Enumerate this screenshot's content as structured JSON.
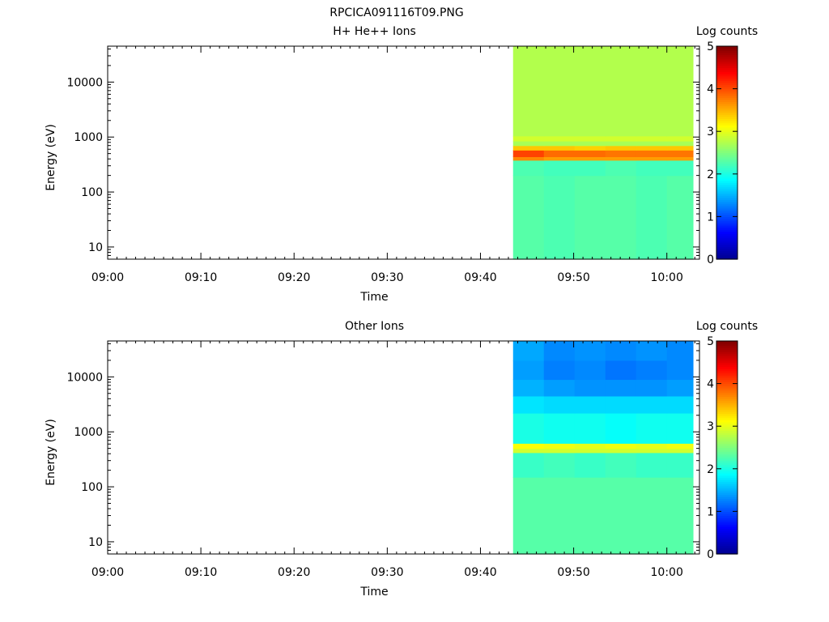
{
  "figure_title": "RPCICA091116T09.PNG",
  "colormap": [
    "#00008f",
    "#0000ff",
    "#007fff",
    "#00ffff",
    "#7fff7f",
    "#ffff00",
    "#ff7f00",
    "#ff0000",
    "#7f0000"
  ],
  "chart_data": [
    {
      "type": "heatmap",
      "title": "H+ He++ Ions",
      "xlabel": "Time",
      "ylabel": "Energy (eV)",
      "x_tick_labels": [
        "09:00",
        "09:10",
        "09:20",
        "09:30",
        "09:40",
        "09:50",
        "10:00"
      ],
      "x_tick_values_min": [
        0,
        10,
        20,
        30,
        40,
        50,
        60
      ],
      "xlim_min": [
        0,
        63.5
      ],
      "y_scale": "log",
      "ylim": [
        6,
        45000
      ],
      "y_tick_labels": [
        "10",
        "100",
        "1000",
        "10000"
      ],
      "y_tick_values": [
        10,
        100,
        1000,
        10000
      ],
      "colorbar_label": "Log counts",
      "colorbar_ticks": [
        "0",
        "1",
        "2",
        "3",
        "4",
        "5"
      ],
      "colorbar_range": [
        0,
        5
      ],
      "data_start_min": 43.5,
      "data_end_min": 62.8,
      "time_bins_min": [
        43.5,
        46.8,
        50.1,
        53.4,
        56.7,
        60.0,
        62.8
      ],
      "energy_bands": [
        {
          "e_low": 6,
          "e_high": 45000,
          "log_counts": [
            2.35,
            2.35,
            2.35,
            2.35,
            2.35,
            2.35
          ]
        }
      ],
      "features": [
        {
          "e_low": 6,
          "e_high": 200,
          "log_counts": [
            2.3,
            2.25,
            2.3,
            2.3,
            2.25,
            2.3
          ]
        },
        {
          "e_low": 200,
          "e_high": 380,
          "log_counts": [
            2.25,
            2.2,
            2.2,
            2.25,
            2.2,
            2.2
          ]
        },
        {
          "e_low": 380,
          "e_high": 440,
          "log_counts": [
            3.7,
            3.6,
            3.6,
            3.6,
            3.6,
            3.6
          ]
        },
        {
          "e_low": 440,
          "e_high": 580,
          "log_counts": [
            4.05,
            3.85,
            3.85,
            3.8,
            3.8,
            3.8
          ]
        },
        {
          "e_low": 580,
          "e_high": 700,
          "log_counts": [
            3.4,
            3.4,
            3.35,
            3.4,
            3.4,
            3.4
          ]
        },
        {
          "e_low": 700,
          "e_high": 850,
          "log_counts": [
            2.7,
            2.7,
            2.7,
            2.7,
            2.7,
            2.7
          ]
        },
        {
          "e_low": 850,
          "e_high": 1050,
          "log_counts": [
            2.9,
            2.9,
            2.9,
            2.9,
            2.9,
            2.9
          ]
        },
        {
          "e_low": 1050,
          "e_high": 45000,
          "log_counts": [
            2.75,
            2.75,
            2.75,
            2.75,
            2.75,
            2.75
          ]
        }
      ]
    },
    {
      "type": "heatmap",
      "title": "Other Ions",
      "xlabel": "Time",
      "ylabel": "Energy (eV)",
      "x_tick_labels": [
        "09:00",
        "09:10",
        "09:20",
        "09:30",
        "09:40",
        "09:50",
        "10:00"
      ],
      "x_tick_values_min": [
        0,
        10,
        20,
        30,
        40,
        50,
        60
      ],
      "xlim_min": [
        0,
        63.5
      ],
      "y_scale": "log",
      "ylim": [
        6,
        45000
      ],
      "y_tick_labels": [
        "10",
        "100",
        "1000",
        "10000"
      ],
      "y_tick_values": [
        10,
        100,
        1000,
        10000
      ],
      "colorbar_label": "Log counts",
      "colorbar_ticks": [
        "0",
        "1",
        "2",
        "3",
        "4",
        "5"
      ],
      "colorbar_range": [
        0,
        5
      ],
      "data_start_min": 43.5,
      "data_end_min": 62.8,
      "time_bins_min": [
        43.5,
        46.8,
        50.1,
        53.4,
        56.7,
        60.0,
        62.8
      ],
      "energy_bands": [
        {
          "e_low": 6,
          "e_high": 45000,
          "log_counts": [
            2.3,
            2.3,
            2.3,
            2.3,
            2.3,
            2.3
          ]
        }
      ],
      "features": [
        {
          "e_low": 6,
          "e_high": 150,
          "log_counts": [
            2.3,
            2.3,
            2.3,
            2.3,
            2.3,
            2.3
          ]
        },
        {
          "e_low": 150,
          "e_high": 420,
          "log_counts": [
            2.15,
            2.2,
            2.15,
            2.2,
            2.15,
            2.15
          ]
        },
        {
          "e_low": 420,
          "e_high": 500,
          "log_counts": [
            2.9,
            2.9,
            2.9,
            2.9,
            2.9,
            2.9
          ]
        },
        {
          "e_low": 500,
          "e_high": 620,
          "log_counts": [
            3.1,
            3.05,
            3.0,
            3.05,
            3.0,
            3.05
          ]
        },
        {
          "e_low": 620,
          "e_high": 2200,
          "log_counts": [
            2.0,
            1.95,
            1.95,
            1.9,
            1.95,
            1.95
          ]
        },
        {
          "e_low": 2200,
          "e_high": 4500,
          "log_counts": [
            1.75,
            1.7,
            1.7,
            1.7,
            1.7,
            1.7
          ]
        },
        {
          "e_low": 4500,
          "e_high": 9000,
          "log_counts": [
            1.5,
            1.4,
            1.35,
            1.35,
            1.35,
            1.4
          ]
        },
        {
          "e_low": 9000,
          "e_high": 20000,
          "log_counts": [
            1.4,
            1.25,
            1.3,
            1.2,
            1.25,
            1.3
          ]
        },
        {
          "e_low": 20000,
          "e_high": 45000,
          "log_counts": [
            1.45,
            1.3,
            1.35,
            1.3,
            1.35,
            1.3
          ]
        }
      ]
    }
  ]
}
